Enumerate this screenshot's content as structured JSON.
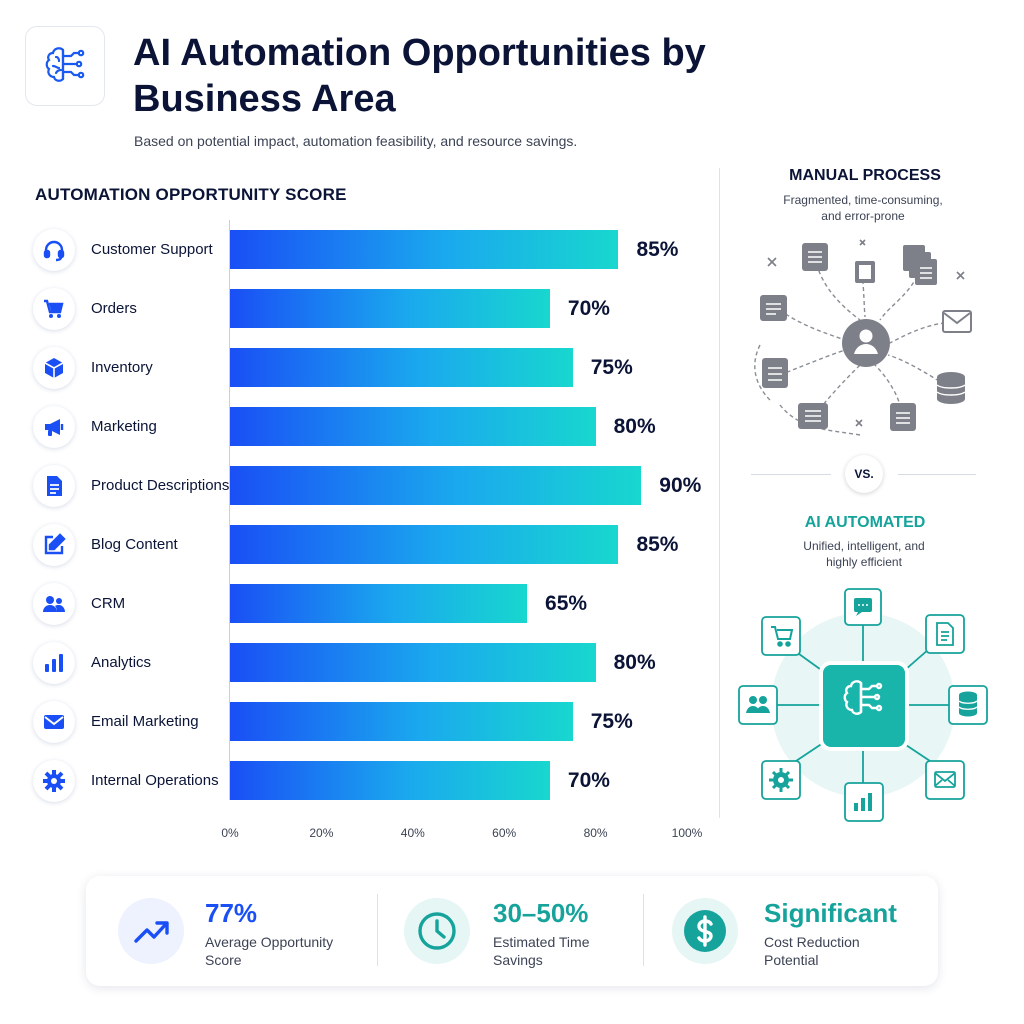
{
  "header": {
    "title": "AI Automation Opportunities by Business Area",
    "subtitle": "Based on potential impact, automation feasibility, and resource savings.",
    "logo_icon": "brain-circuit-icon"
  },
  "chart_data": {
    "type": "bar",
    "orientation": "horizontal",
    "title": "AUTOMATION OPPORTUNITY SCORE",
    "categories": [
      "Customer Support",
      "Orders",
      "Inventory",
      "Marketing",
      "Product Descriptions",
      "Blog Content",
      "CRM",
      "Analytics",
      "Email Marketing",
      "Internal Operations"
    ],
    "icons": [
      "headset-icon",
      "cart-icon",
      "box-icon",
      "megaphone-icon",
      "document-icon",
      "edit-icon",
      "users-icon",
      "bar-chart-icon",
      "mail-icon",
      "gear-icon"
    ],
    "values": [
      85,
      70,
      75,
      80,
      90,
      85,
      65,
      80,
      75,
      70
    ],
    "value_labels": [
      "85%",
      "70%",
      "75%",
      "80%",
      "90%",
      "85%",
      "65%",
      "80%",
      "75%",
      "70%"
    ],
    "xlim": [
      0,
      100
    ],
    "xticks": [
      "0%",
      "20%",
      "40%",
      "60%",
      "80%",
      "100%"
    ],
    "grid": false,
    "colors": {
      "bar_start": "#1a4ff5",
      "bar_end": "#18d7cf"
    }
  },
  "comparison": {
    "manual": {
      "title": "MANUAL PROCESS",
      "description": "Fragmented, time-consuming, and error-prone"
    },
    "vs_label": "VS.",
    "ai": {
      "title": "AI AUTOMATED",
      "description": "Unified, intelligent, and highly efficient"
    },
    "colors": {
      "manual": "#7d8089",
      "ai": "#15a39b"
    }
  },
  "stats": [
    {
      "value": "77%",
      "label": "Average Opportunity Score",
      "icon": "trend-up-icon",
      "color": "#1a4ff5"
    },
    {
      "value": "30–50%",
      "label": "Estimated Time Savings",
      "icon": "clock-icon",
      "color": "#15a39b"
    },
    {
      "value": "Significant",
      "label": "Cost Reduction Potential",
      "icon": "dollar-icon",
      "color": "#15a39b"
    }
  ]
}
